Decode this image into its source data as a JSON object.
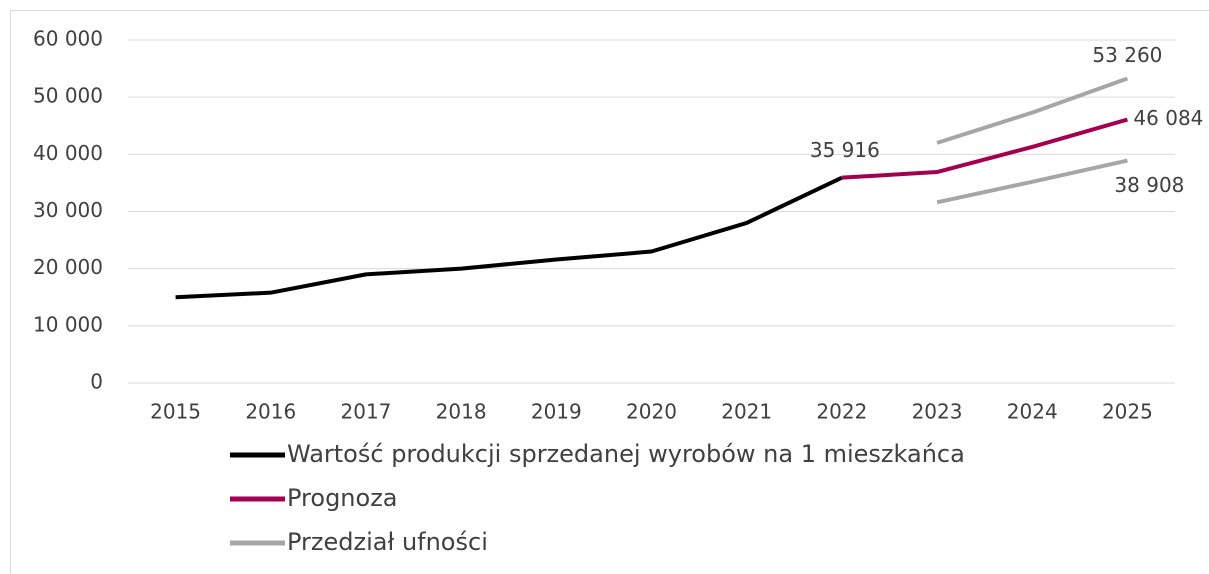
{
  "chart_data": {
    "type": "line",
    "categories": [
      "2015",
      "2016",
      "2017",
      "2018",
      "2019",
      "2020",
      "2021",
      "2022",
      "2023",
      "2024",
      "2025"
    ],
    "series": [
      {
        "name": "Wartość produkcji sprzedanej wyrobów na 1 mieszkańca",
        "color": "#000000",
        "values": [
          15000,
          15800,
          19000,
          20000,
          21600,
          23000,
          28000,
          35916,
          null,
          null,
          null
        ],
        "value_labels": [
          null,
          null,
          null,
          null,
          null,
          null,
          null,
          "35 916",
          null,
          null,
          null
        ]
      },
      {
        "name": "Prognoza",
        "color": "#a3004f",
        "values": [
          null,
          null,
          null,
          null,
          null,
          null,
          null,
          35916,
          36900,
          41300,
          46084
        ],
        "value_labels": [
          null,
          null,
          null,
          null,
          null,
          null,
          null,
          null,
          null,
          null,
          "46 084"
        ]
      },
      {
        "name": "Przedział ufności",
        "color": "#a6a6a6",
        "values": [
          null,
          null,
          null,
          null,
          null,
          null,
          null,
          null,
          42000,
          47300,
          53260
        ],
        "value_labels": [
          null,
          null,
          null,
          null,
          null,
          null,
          null,
          null,
          null,
          null,
          "53 260"
        ]
      },
      {
        "color": "#a6a6a6",
        "values": [
          null,
          null,
          null,
          null,
          null,
          null,
          null,
          null,
          31600,
          35200,
          38908
        ],
        "value_labels": [
          null,
          null,
          null,
          null,
          null,
          null,
          null,
          null,
          null,
          null,
          "38 908"
        ]
      }
    ],
    "ylim": [
      0,
      60000
    ],
    "yticks": [
      0,
      {
        "value": 10000,
        "label": "10 000"
      },
      {
        "value": 20000,
        "label": "20 000"
      },
      {
        "value": 30000,
        "label": "30 000"
      },
      {
        "value": 40000,
        "label": "40 000"
      },
      {
        "value": 50000,
        "label": "50 000"
      },
      {
        "value": 60000,
        "label": "60 000"
      }
    ],
    "grid": true
  }
}
